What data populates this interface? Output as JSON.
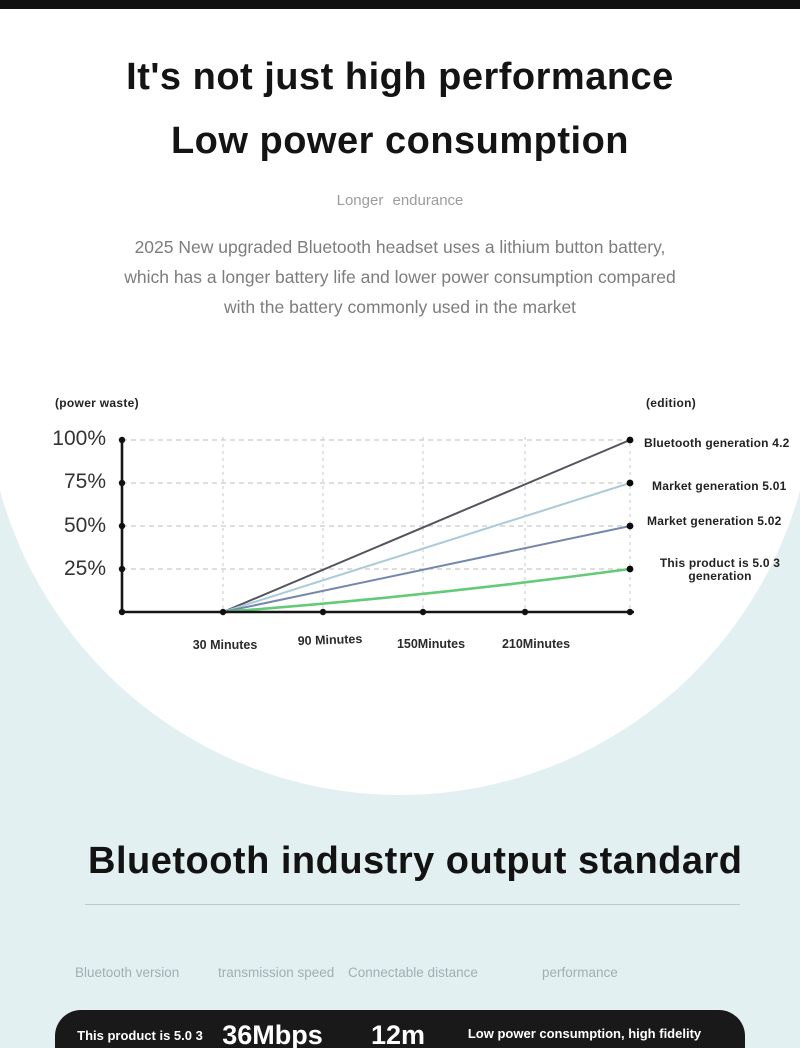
{
  "theme": {
    "background": "#e2f0f2",
    "dome": "#ffffff",
    "top_bar": "#101010",
    "spec_row_bg": "#191919",
    "heading_color": "#141414",
    "muted_text": "#9c9c9c"
  },
  "hero": {
    "title_line1": "It's not just high performance",
    "title_line2": "Low power consumption",
    "subtitle": "Longer endurance",
    "description_line1": "2025 New upgraded Bluetooth headset uses a lithium button battery,",
    "description_line2": "which has a longer battery life and lower power consumption compared",
    "description_line3": "with the battery commonly used in the market"
  },
  "chart_data": {
    "type": "line",
    "title": "",
    "ylabel": "(power waste)",
    "legend_title": "(edition)",
    "ylim": [
      0,
      100
    ],
    "grid": true,
    "legend_position": "right",
    "y_ticks": [
      {
        "label": "100%",
        "value": 100
      },
      {
        "label": "75%",
        "value": 75
      },
      {
        "label": "50%",
        "value": 50
      },
      {
        "label": "25%",
        "value": 25
      }
    ],
    "x_ticks": [
      "30 Minutes",
      "90 Minutes",
      "150Minutes",
      "210Minutes"
    ],
    "x_values_minutes": [
      30,
      90,
      150,
      210
    ],
    "series": [
      {
        "name": "Bluetooth generation 4.2",
        "color": "#54545e",
        "x_minutes": [
          30,
          240
        ],
        "values": [
          0,
          100
        ]
      },
      {
        "name": "Market generation 5.01",
        "color": "#aacbd9",
        "x_minutes": [
          30,
          240
        ],
        "values": [
          0,
          75
        ]
      },
      {
        "name": "Market generation 5.02",
        "color": "#7487ae",
        "x_minutes": [
          30,
          240
        ],
        "values": [
          0,
          50
        ]
      },
      {
        "name": "This product is 5.0 3 generation",
        "color": "#63cb78",
        "x_minutes": [
          30,
          240
        ],
        "values": [
          0,
          25
        ]
      }
    ]
  },
  "standard_section": {
    "title": "Bluetooth industry output standard",
    "columns": [
      "Bluetooth version",
      "transmission speed",
      "Connectable distance",
      "performance"
    ],
    "rows": [
      {
        "bluetooth_version": "This product is 5.0 3",
        "transmission_speed": "36Mbps",
        "connectable_distance": "12m",
        "performance": "Low power consumption, high fidelity"
      }
    ]
  }
}
